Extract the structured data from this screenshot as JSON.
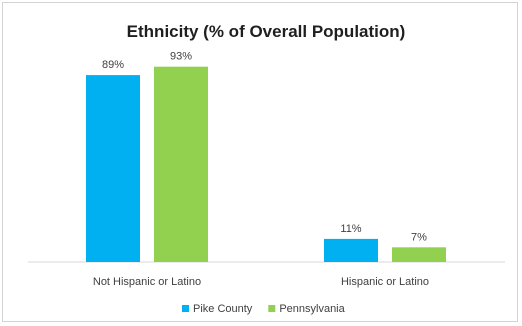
{
  "chart_data": {
    "type": "bar",
    "title": "Ethnicity (% of Overall Population)",
    "categories": [
      "Not Hispanic or Latino",
      "Hispanic or Latino"
    ],
    "series": [
      {
        "name": "Pike County",
        "values": [
          89,
          11
        ],
        "labels": [
          "89%",
          "11%"
        ],
        "color": "#00B0F0"
      },
      {
        "name": "Pennsylvania",
        "values": [
          93,
          7
        ],
        "labels": [
          "93%",
          "7%"
        ],
        "color": "#92D050"
      }
    ],
    "ylim": [
      0,
      100
    ],
    "grid": false,
    "legend_position": "bottom"
  }
}
